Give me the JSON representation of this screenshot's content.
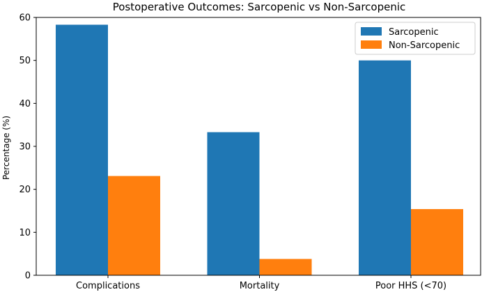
{
  "chart_data": {
    "type": "bar",
    "title": "Postoperative Outcomes: Sarcopenic vs Non-Sarcopenic",
    "xlabel": "",
    "ylabel": "Percentage (%)",
    "categories": [
      "Complications",
      "Mortality",
      "Poor HHS (<70)"
    ],
    "series": [
      {
        "name": "Sarcopenic",
        "values": [
          58.3,
          33.3,
          50.0
        ],
        "color": "#1f77b4"
      },
      {
        "name": "Non-Sarcopenic",
        "values": [
          23.1,
          3.8,
          15.4
        ],
        "color": "#ff7f0e"
      }
    ],
    "ylim": [
      0,
      60
    ],
    "yticks": [
      0,
      10,
      20,
      30,
      40,
      50,
      60
    ],
    "grid": false,
    "legend": "top-right"
  }
}
